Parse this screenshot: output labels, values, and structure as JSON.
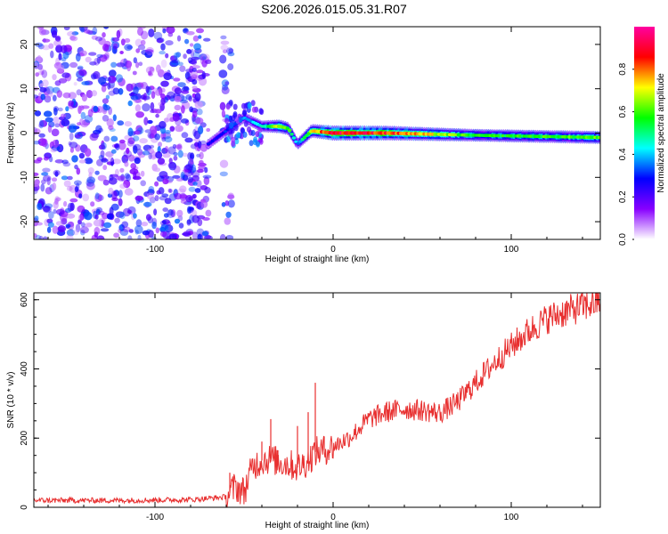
{
  "title": "S206.2026.015.05.31.R07",
  "chart_data": [
    {
      "type": "heatmap",
      "xlabel": "Height of straight line (km)",
      "ylabel": "Frequency (Hz)",
      "xlim": [
        -168,
        150
      ],
      "ylim": [
        -24,
        24
      ],
      "xticks": [
        "-100",
        "0",
        "100"
      ],
      "yticks": [
        "20",
        "10",
        "0",
        "-10",
        "-20"
      ],
      "colorbar": {
        "label": "Normalized spectral amplitude",
        "range": [
          0,
          1
        ],
        "ticks": [
          "0.0",
          "0.2",
          "0.4",
          "0.6",
          "0.8"
        ],
        "colormap": [
          "#ffffff",
          "#8800ff",
          "#0000ff",
          "#00ffff",
          "#00ff00",
          "#ffff00",
          "#ff0000",
          "#ff00a0"
        ]
      },
      "features": {
        "noise_region_x": [
          -168,
          -57
        ],
        "noise_level": 0.25,
        "tone_track": [
          {
            "x": -70,
            "f": -2.5,
            "a": 0.25
          },
          {
            "x": -60,
            "f": 0.5,
            "a": 0.3
          },
          {
            "x": -50,
            "f": 3.5,
            "a": 0.35
          },
          {
            "x": -40,
            "f": 1.5,
            "a": 0.45
          },
          {
            "x": -30,
            "f": 1.5,
            "a": 0.7
          },
          {
            "x": -25,
            "f": 1.0,
            "a": 0.6
          },
          {
            "x": -20,
            "f": -2.5,
            "a": 0.35
          },
          {
            "x": -12,
            "f": 0.5,
            "a": 0.7
          },
          {
            "x": 0,
            "f": 0.0,
            "a": 0.9
          },
          {
            "x": 30,
            "f": 0.0,
            "a": 0.85
          },
          {
            "x": 80,
            "f": -0.5,
            "a": 0.55
          },
          {
            "x": 150,
            "f": -1.0,
            "a": 0.6
          }
        ]
      }
    },
    {
      "type": "line",
      "xlabel": "Height of straight line (km)",
      "ylabel": "SNR (10 * v/v)",
      "xlim": [
        -168,
        150
      ],
      "ylim": [
        0,
        620
      ],
      "xticks": [
        "-100",
        "0",
        "100"
      ],
      "yticks": [
        "0",
        "200",
        "400",
        "600"
      ],
      "color": "#e83030",
      "x": [
        -168,
        -120,
        -80,
        -60,
        -55,
        -50,
        -45,
        -40,
        -35,
        -30,
        -25,
        -20,
        -15,
        -10,
        -5,
        0,
        10,
        20,
        30,
        40,
        50,
        60,
        70,
        80,
        90,
        100,
        110,
        120,
        130,
        140,
        150
      ],
      "y": [
        20,
        20,
        22,
        30,
        60,
        45,
        120,
        135,
        140,
        130,
        125,
        115,
        130,
        160,
        165,
        175,
        205,
        255,
        275,
        285,
        280,
        272,
        305,
        360,
        415,
        465,
        510,
        545,
        565,
        580,
        595
      ],
      "spikes": [
        {
          "x": -58,
          "y": 100
        },
        {
          "x": -40,
          "y": 190
        },
        {
          "x": -35,
          "y": 255
        },
        {
          "x": -31,
          "y": 165
        },
        {
          "x": -20,
          "y": 235
        },
        {
          "x": -14,
          "y": 275
        },
        {
          "x": -10,
          "y": 360
        },
        {
          "x": -5,
          "y": 205
        },
        {
          "x": 148,
          "y": 620
        }
      ]
    }
  ]
}
